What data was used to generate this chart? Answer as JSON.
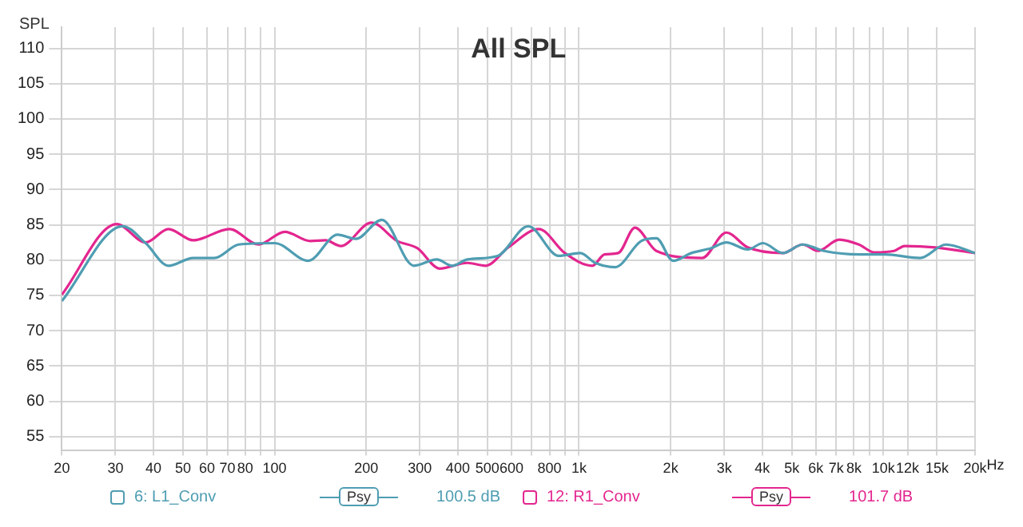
{
  "chart_data": {
    "type": "line",
    "title": "All SPL",
    "ylabel": "SPL",
    "log": "x",
    "grid": true,
    "legend": "bottom",
    "marker": "none",
    "line_style": "solid",
    "xlim": [
      20,
      20000
    ],
    "ylim": [
      53,
      113
    ],
    "xticks": [
      20,
      30,
      40,
      50,
      60,
      70,
      80,
      {
        "value": 90,
        "label": null
      },
      100,
      200,
      300,
      400,
      500,
      600,
      {
        "value": 700,
        "label": null
      },
      800,
      {
        "value": 900,
        "label": null
      },
      {
        "value": 1000,
        "label": "1k"
      },
      {
        "value": 2000,
        "label": "2k"
      },
      {
        "value": 3000,
        "label": "3k"
      },
      {
        "value": 4000,
        "label": "4k"
      },
      {
        "value": 5000,
        "label": "5k"
      },
      {
        "value": 6000,
        "label": "6k"
      },
      {
        "value": 7000,
        "label": "7k"
      },
      {
        "value": 8000,
        "label": "8k"
      },
      {
        "value": 9000,
        "label": null
      },
      {
        "value": 10000,
        "label": "10k"
      },
      {
        "value": 12000,
        "label": "12k"
      },
      {
        "value": 15000,
        "label": "15k"
      },
      {
        "value": 20000,
        "label": "20k"
      }
    ],
    "xlabel": "Hz",
    "yticks": [
      55,
      60,
      65,
      70,
      75,
      80,
      85,
      90,
      95,
      100,
      105,
      110
    ],
    "annotations": [
      "Psy",
      "100.5 dB",
      "Psy",
      "101.7 dB"
    ],
    "series": [
      {
        "name": "6: L1_Conv",
        "color": "#4f9db2",
        "x": [
          20,
          31.7,
          37.7,
          44.8,
          54,
          63.4,
          76.2,
          100,
          129,
          161,
          185,
          225,
          287,
          341,
          383,
          430,
          541,
          681,
          858,
          1010,
          1130,
          1315,
          1600,
          1795,
          2037,
          2340,
          2720,
          3048,
          3583,
          4020,
          4675,
          5430,
          6380,
          8310,
          10110,
          13190,
          16040,
          20000
        ],
        "values": [
          74.2,
          84.8,
          82.4,
          79.2,
          80.3,
          80.3,
          82.2,
          82.4,
          79.9,
          83.6,
          83,
          85.7,
          79.2,
          80.1,
          79.2,
          80.1,
          80.6,
          84.8,
          80.6,
          81,
          79.6,
          79,
          82.7,
          83.1,
          79.9,
          81,
          81.7,
          82.5,
          81.5,
          82.4,
          81,
          82.2,
          81.3,
          80.8,
          80.8,
          80.3,
          82.2,
          81
        ]
      },
      {
        "name": "12: R1_Conv",
        "color": "#e3268f",
        "x": [
          20,
          30.3,
          37.7,
          44.8,
          54,
          71.1,
          88.5,
          108,
          131,
          147,
          165,
          208,
          253,
          294,
          349,
          430,
          493,
          586,
          738,
          898,
          1106,
          1213,
          1346,
          1527,
          1795,
          2536,
          3048,
          3583,
          4675,
          5430,
          6090,
          7160,
          8310,
          9330,
          10840,
          11750,
          14800,
          20000
        ],
        "values": [
          75.1,
          85.1,
          82.5,
          84.4,
          82.8,
          84.4,
          82.2,
          84,
          82.7,
          82.8,
          82,
          85.3,
          82.7,
          81.7,
          78.8,
          79.6,
          79.2,
          81.8,
          84.4,
          81,
          79.2,
          80.8,
          81,
          84.6,
          81.3,
          80.3,
          83.9,
          81.8,
          81,
          82.2,
          81.3,
          82.9,
          82.2,
          81.1,
          81.3,
          82,
          81.8,
          81
        ]
      }
    ]
  }
}
